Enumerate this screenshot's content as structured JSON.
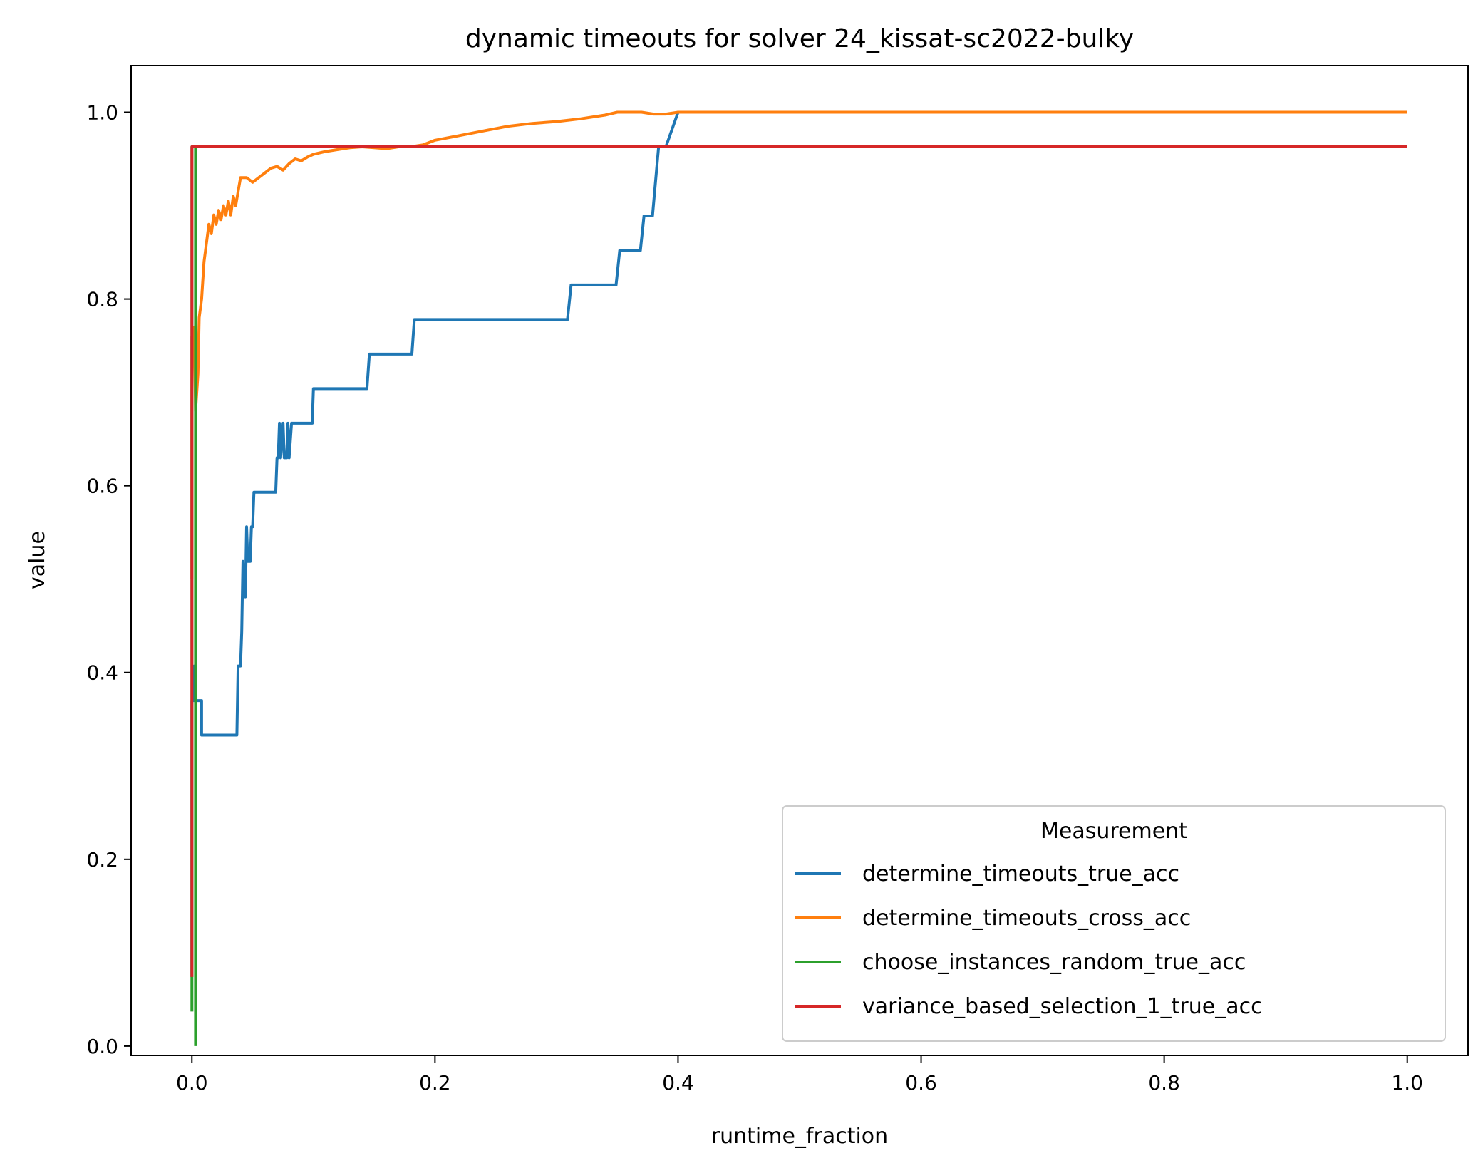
{
  "chart_data": {
    "type": "line",
    "title": "dynamic timeouts for solver 24_kissat-sc2022-bulky",
    "xlabel": "runtime_fraction",
    "ylabel": "value",
    "xlim": [
      -0.05,
      1.05
    ],
    "ylim": [
      -0.01,
      1.05
    ],
    "xticks": [
      0.0,
      0.2,
      0.4,
      0.6,
      0.8,
      1.0
    ],
    "xtick_labels": [
      "0.0",
      "0.2",
      "0.4",
      "0.6",
      "0.8",
      "1.0"
    ],
    "yticks": [
      0.0,
      0.2,
      0.4,
      0.6,
      0.8,
      1.0
    ],
    "ytick_labels": [
      "0.0",
      "0.2",
      "0.4",
      "0.6",
      "0.8",
      "1.0"
    ],
    "grid": false,
    "legend": {
      "title": "Measurement",
      "placement": "lower right"
    },
    "series": [
      {
        "name": "determine_timeouts_true_acc",
        "color": "#1f77b4",
        "points": [
          [
            0.0,
            0.074
          ],
          [
            0.0,
            0.37
          ],
          [
            0.002,
            0.37
          ],
          [
            0.002,
            0.407
          ],
          [
            0.003,
            0.37
          ],
          [
            0.008,
            0.37
          ],
          [
            0.008,
            0.333
          ],
          [
            0.037,
            0.333
          ],
          [
            0.038,
            0.407
          ],
          [
            0.04,
            0.407
          ],
          [
            0.041,
            0.444
          ],
          [
            0.042,
            0.519
          ],
          [
            0.044,
            0.481
          ],
          [
            0.045,
            0.556
          ],
          [
            0.046,
            0.519
          ],
          [
            0.048,
            0.519
          ],
          [
            0.049,
            0.556
          ],
          [
            0.05,
            0.556
          ],
          [
            0.051,
            0.593
          ],
          [
            0.069,
            0.593
          ],
          [
            0.07,
            0.63
          ],
          [
            0.071,
            0.63
          ],
          [
            0.072,
            0.667
          ],
          [
            0.073,
            0.63
          ],
          [
            0.075,
            0.667
          ],
          [
            0.076,
            0.63
          ],
          [
            0.078,
            0.63
          ],
          [
            0.079,
            0.667
          ],
          [
            0.08,
            0.63
          ],
          [
            0.082,
            0.667
          ],
          [
            0.099,
            0.667
          ],
          [
            0.1,
            0.704
          ],
          [
            0.144,
            0.704
          ],
          [
            0.146,
            0.741
          ],
          [
            0.181,
            0.741
          ],
          [
            0.183,
            0.778
          ],
          [
            0.309,
            0.778
          ],
          [
            0.312,
            0.815
          ],
          [
            0.349,
            0.815
          ],
          [
            0.352,
            0.852
          ],
          [
            0.369,
            0.852
          ],
          [
            0.372,
            0.889
          ],
          [
            0.379,
            0.889
          ],
          [
            0.384,
            0.963
          ],
          [
            0.39,
            0.963
          ],
          [
            0.4,
            1.0
          ],
          [
            1.0,
            1.0
          ]
        ]
      },
      {
        "name": "determine_timeouts_cross_acc",
        "color": "#ff7f0e",
        "points": [
          [
            0.0,
            0.5
          ],
          [
            0.0,
            0.76
          ],
          [
            0.002,
            0.77
          ],
          [
            0.003,
            0.68
          ],
          [
            0.005,
            0.72
          ],
          [
            0.006,
            0.78
          ],
          [
            0.008,
            0.8
          ],
          [
            0.01,
            0.84
          ],
          [
            0.012,
            0.86
          ],
          [
            0.014,
            0.88
          ],
          [
            0.016,
            0.87
          ],
          [
            0.018,
            0.89
          ],
          [
            0.02,
            0.88
          ],
          [
            0.022,
            0.895
          ],
          [
            0.024,
            0.885
          ],
          [
            0.026,
            0.9
          ],
          [
            0.028,
            0.89
          ],
          [
            0.03,
            0.905
          ],
          [
            0.032,
            0.89
          ],
          [
            0.034,
            0.91
          ],
          [
            0.036,
            0.9
          ],
          [
            0.038,
            0.915
          ],
          [
            0.04,
            0.93
          ],
          [
            0.045,
            0.93
          ],
          [
            0.05,
            0.925
          ],
          [
            0.055,
            0.93
          ],
          [
            0.06,
            0.935
          ],
          [
            0.065,
            0.94
          ],
          [
            0.07,
            0.942
          ],
          [
            0.075,
            0.938
          ],
          [
            0.08,
            0.945
          ],
          [
            0.085,
            0.95
          ],
          [
            0.09,
            0.948
          ],
          [
            0.095,
            0.952
          ],
          [
            0.1,
            0.955
          ],
          [
            0.11,
            0.958
          ],
          [
            0.12,
            0.96
          ],
          [
            0.13,
            0.962
          ],
          [
            0.14,
            0.963
          ],
          [
            0.15,
            0.962
          ],
          [
            0.16,
            0.961
          ],
          [
            0.17,
            0.963
          ],
          [
            0.18,
            0.963
          ],
          [
            0.19,
            0.965
          ],
          [
            0.2,
            0.97
          ],
          [
            0.22,
            0.975
          ],
          [
            0.24,
            0.98
          ],
          [
            0.26,
            0.985
          ],
          [
            0.28,
            0.988
          ],
          [
            0.3,
            0.99
          ],
          [
            0.32,
            0.993
          ],
          [
            0.34,
            0.997
          ],
          [
            0.35,
            1.0
          ],
          [
            0.37,
            1.0
          ],
          [
            0.38,
            0.998
          ],
          [
            0.39,
            0.998
          ],
          [
            0.4,
            1.0
          ],
          [
            1.0,
            1.0
          ]
        ]
      },
      {
        "name": "choose_instances_random_true_acc",
        "color": "#2ca02c",
        "points": [
          [
            0.0,
            0.037
          ],
          [
            0.0,
            0.963
          ],
          [
            0.003,
            0.963
          ],
          [
            0.003,
            0.0
          ]
        ]
      },
      {
        "name": "variance_based_selection_1_true_acc",
        "color": "#d62728",
        "points": [
          [
            0.0,
            0.074
          ],
          [
            0.0,
            0.963
          ],
          [
            1.0,
            0.963
          ]
        ]
      }
    ]
  }
}
